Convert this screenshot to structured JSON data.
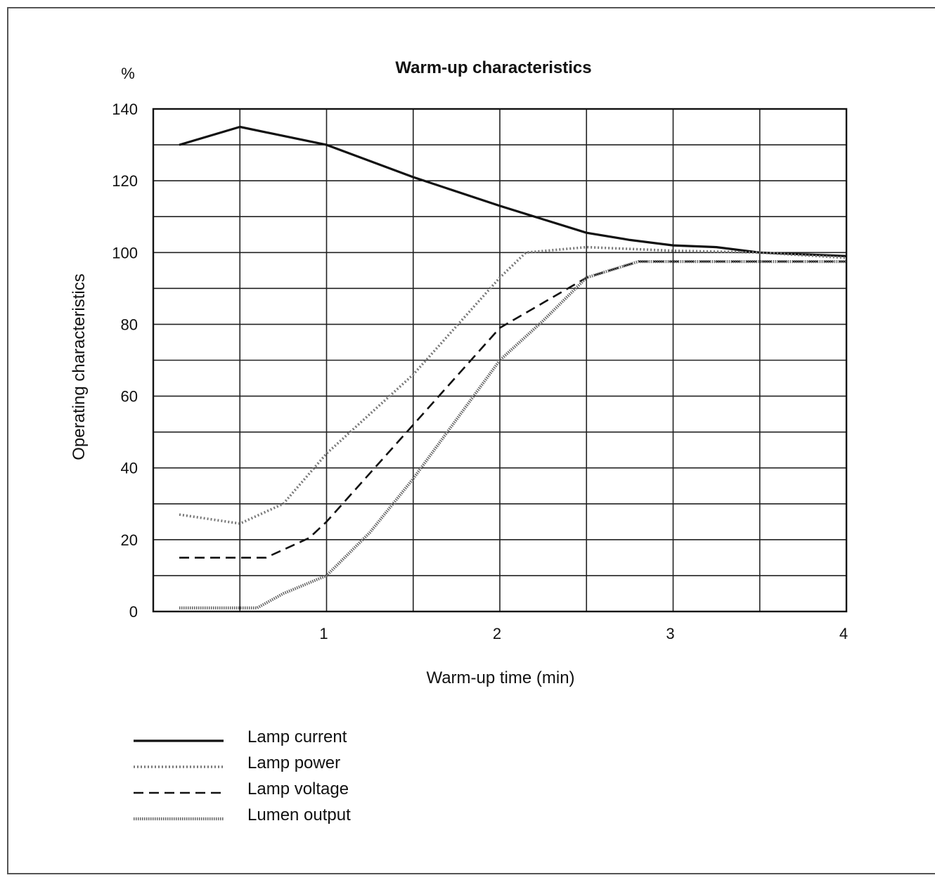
{
  "chart_data": {
    "type": "line",
    "title": "Warm-up characteristics",
    "xlabel": "Warm-up time (min)",
    "ylabel": "Operating characteristics",
    "yunit": "%",
    "xlim": [
      0,
      4
    ],
    "ylim": [
      0,
      140
    ],
    "xticks": [
      1,
      2,
      3,
      4
    ],
    "yticks": [
      0,
      20,
      40,
      60,
      80,
      100,
      120,
      140
    ],
    "grid": true,
    "legend_position": "bottom-left",
    "series": [
      {
        "name": "Lamp current",
        "style": "solid",
        "color": "#111111",
        "points": [
          [
            0.15,
            130
          ],
          [
            0.5,
            135
          ],
          [
            1.0,
            130
          ],
          [
            1.5,
            121
          ],
          [
            2.0,
            113
          ],
          [
            2.5,
            105.5
          ],
          [
            2.75,
            103.5
          ],
          [
            3.0,
            102
          ],
          [
            3.25,
            101.5
          ],
          [
            3.5,
            100
          ],
          [
            4.0,
            99
          ]
        ]
      },
      {
        "name": "Lamp power",
        "style": "dotted-hatch",
        "color": "#777777",
        "points": [
          [
            0.15,
            27
          ],
          [
            0.5,
            24.5
          ],
          [
            0.75,
            30
          ],
          [
            1.0,
            44
          ],
          [
            1.5,
            66
          ],
          [
            2.0,
            93
          ],
          [
            2.15,
            100
          ],
          [
            2.5,
            101.5
          ],
          [
            3.0,
            100.5
          ],
          [
            3.5,
            100
          ],
          [
            4.0,
            98.5
          ]
        ]
      },
      {
        "name": "Lamp voltage",
        "style": "dashed",
        "color": "#111111",
        "points": [
          [
            0.15,
            15
          ],
          [
            0.5,
            15
          ],
          [
            0.65,
            15
          ],
          [
            0.9,
            20.5
          ],
          [
            1.0,
            25
          ],
          [
            1.5,
            52
          ],
          [
            2.0,
            79
          ],
          [
            2.25,
            86
          ],
          [
            2.5,
            93
          ],
          [
            2.8,
            97.5
          ],
          [
            3.0,
            97.5
          ],
          [
            4.0,
            97.5
          ]
        ]
      },
      {
        "name": "Lumen output",
        "style": "hatch",
        "color": "#666666",
        "points": [
          [
            0.15,
            1
          ],
          [
            0.5,
            1
          ],
          [
            0.6,
            1
          ],
          [
            0.75,
            5
          ],
          [
            1.0,
            10
          ],
          [
            1.25,
            22
          ],
          [
            1.5,
            37
          ],
          [
            2.0,
            70
          ],
          [
            2.25,
            81
          ],
          [
            2.5,
            93
          ],
          [
            2.8,
            97.5
          ],
          [
            3.0,
            97.5
          ],
          [
            4.0,
            97.5
          ]
        ]
      }
    ]
  }
}
